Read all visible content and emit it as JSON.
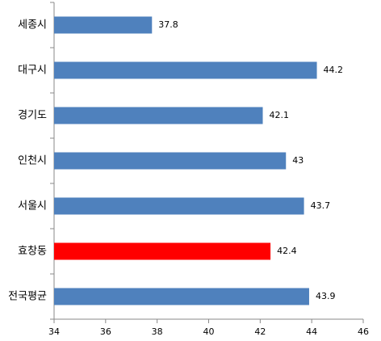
{
  "chart_data": {
    "type": "bar",
    "orientation": "horizontal",
    "categories": [
      "세종시",
      "대구시",
      "경기도",
      "인천시",
      "서울시",
      "효창동",
      "전국평균"
    ],
    "values": [
      37.8,
      44.2,
      42.1,
      43,
      43.7,
      42.4,
      43.9
    ],
    "colors": [
      "#4f81bd",
      "#4f81bd",
      "#4f81bd",
      "#4f81bd",
      "#4f81bd",
      "#ff0000",
      "#4f81bd"
    ],
    "xlim": [
      34,
      46
    ],
    "xticks": [
      34,
      36,
      38,
      40,
      42,
      44,
      46
    ]
  }
}
